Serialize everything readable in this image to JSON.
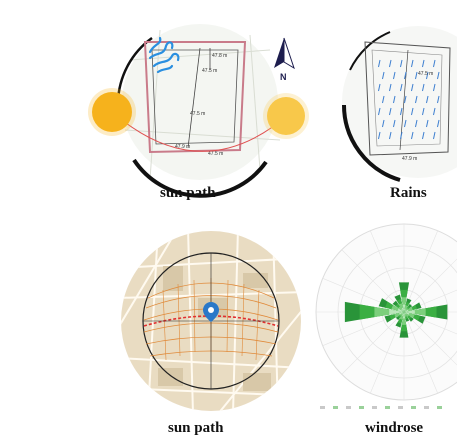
{
  "captions": {
    "sun_path_top": "sun path",
    "rains": "Rains",
    "sun_path_bottom": "sun path",
    "windrose": "windrose"
  },
  "site_plan": {
    "dimension_labels": [
      "47.8 m",
      "47.5 m",
      "47.5 m",
      "47.9 m",
      "47.5 m",
      "47.4 m"
    ]
  },
  "north_label": "N",
  "colors": {
    "sun": "#f6b21c",
    "sun_arc": "#e05050",
    "plot_boundary": "#c97b8a",
    "wind_icon": "#2a8fe0",
    "rain": "#3d7fd0",
    "rose_green": "#3cb043",
    "sun_path_orange": "#e08a3a",
    "map_bg": "#e9dcc2"
  },
  "icons": {
    "wind": "wind-icon",
    "north_arrow": "north-arrow-icon",
    "map_pin": "location-pin-icon"
  }
}
